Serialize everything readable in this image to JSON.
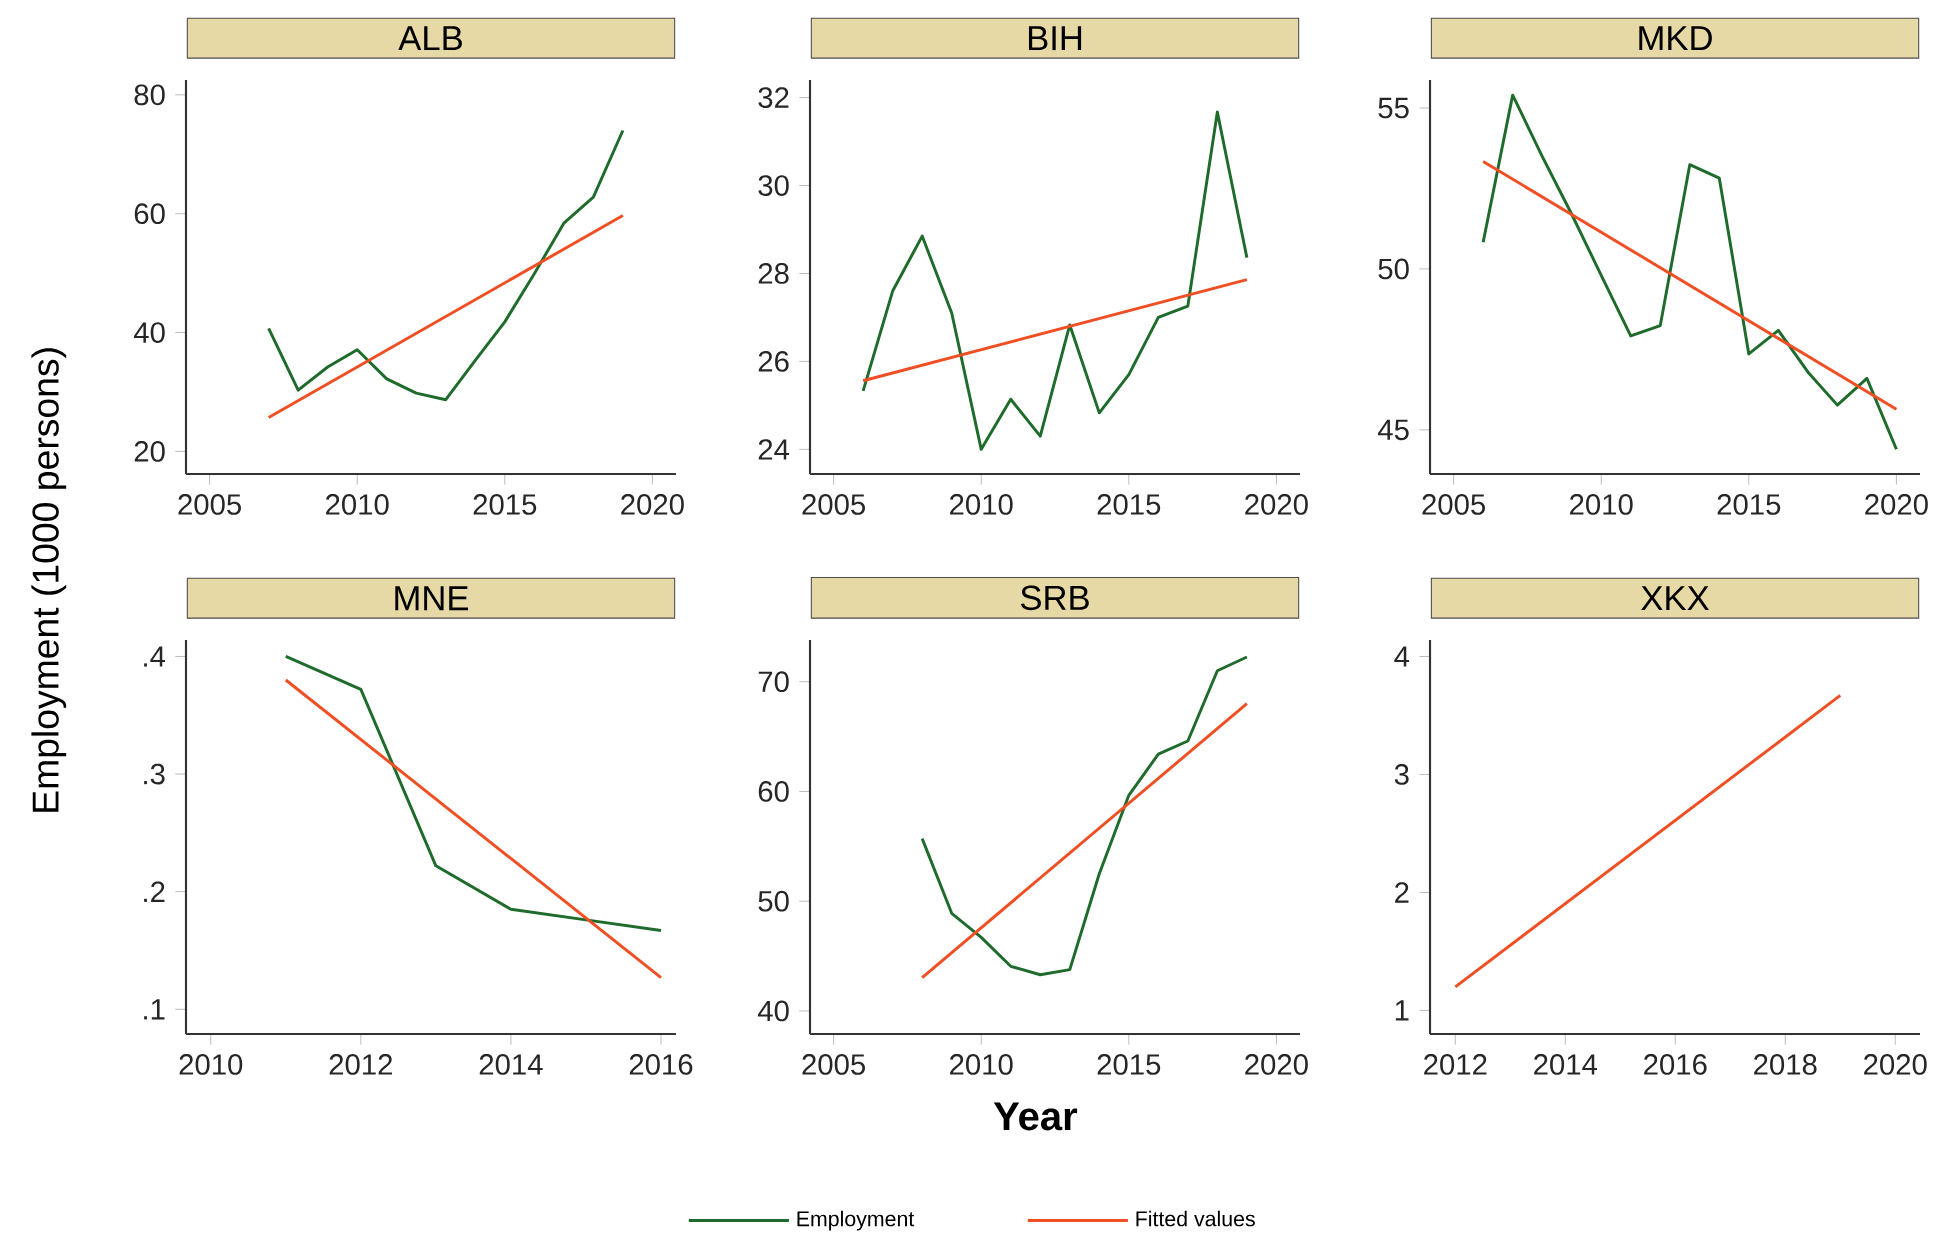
{
  "chart_data": [
    {
      "type": "line",
      "title": "ALB",
      "ylabel": "Employment (1000 persons)",
      "xlim": [
        2004.2,
        2020.8
      ],
      "ylim": [
        16.2,
        82.5
      ],
      "xticks": [
        2005,
        2010,
        2015,
        2020
      ],
      "yticks": [
        20,
        40,
        60,
        80
      ],
      "series": [
        {
          "color": "#1e6b2c",
          "x": [
            2007,
            2008,
            2009,
            2010,
            2011,
            2012,
            2013,
            2014,
            2015,
            2016,
            2017,
            2018,
            2019
          ],
          "values": [
            40.7,
            30.3,
            34.2,
            37.1,
            32.2,
            29.8,
            28.7,
            35.3,
            41.8,
            49.9,
            58.4,
            62.8,
            74.0
          ]
        },
        {
          "color": "#f04e23",
          "x": [
            2007,
            2019
          ],
          "values": [
            25.7,
            59.7
          ]
        }
      ]
    },
    {
      "type": "line",
      "title": "BIH",
      "xlim": [
        2004.2,
        2020.8
      ],
      "ylim": [
        23.44,
        32.4
      ],
      "xticks": [
        2005,
        2010,
        2015,
        2020
      ],
      "yticks": [
        24,
        26,
        28,
        30,
        32
      ],
      "series": [
        {
          "color": "#1e6b2c",
          "x": [
            2006,
            2007,
            2008,
            2009,
            2010,
            2011,
            2012,
            2013,
            2014,
            2015,
            2016,
            2017,
            2018,
            2019
          ],
          "values": [
            25.33,
            27.6,
            28.85,
            27.1,
            24.0,
            25.14,
            24.3,
            26.83,
            24.83,
            25.7,
            27.0,
            27.26,
            31.67,
            28.36
          ]
        },
        {
          "color": "#f04e23",
          "x": [
            2006,
            2019
          ],
          "values": [
            25.56,
            27.86
          ]
        }
      ]
    },
    {
      "type": "line",
      "title": "MKD",
      "xlim": [
        2004.2,
        2020.8
      ],
      "ylim": [
        43.63,
        55.87
      ],
      "xticks": [
        2005,
        2010,
        2015,
        2020
      ],
      "yticks": [
        45,
        50,
        55
      ],
      "series": [
        {
          "color": "#1e6b2c",
          "x": [
            2006,
            2007,
            2008,
            2009,
            2010,
            2011,
            2012,
            2013,
            2014,
            2015,
            2016,
            2017,
            2018,
            2019,
            2020
          ],
          "values": [
            50.83,
            55.4,
            53.5,
            51.7,
            49.8,
            47.92,
            48.24,
            53.24,
            52.82,
            47.36,
            48.09,
            46.8,
            45.77,
            46.6,
            44.4
          ]
        },
        {
          "color": "#f04e23",
          "x": [
            2006,
            2020
          ],
          "values": [
            53.34,
            45.64
          ]
        }
      ]
    },
    {
      "type": "line",
      "title": "MNE",
      "xlim": [
        2009.67,
        2016.2
      ],
      "ylim": [
        0.079,
        0.414
      ],
      "xticks": [
        2010,
        2012,
        2014,
        2016
      ],
      "yticks": [
        {
          "value": 0.1,
          "label": ".1"
        },
        {
          "value": 0.2,
          "label": ".2"
        },
        {
          "value": 0.3,
          "label": ".3"
        },
        {
          "value": 0.4,
          "label": ".4"
        }
      ],
      "series": [
        {
          "color": "#1e6b2c",
          "x": [
            2011,
            2012,
            2013,
            2014,
            2015,
            2016
          ],
          "values": [
            0.4,
            0.372,
            0.222,
            0.185,
            0.176,
            0.167
          ]
        },
        {
          "color": "#f04e23",
          "x": [
            2011,
            2016
          ],
          "values": [
            0.38,
            0.127
          ]
        }
      ]
    },
    {
      "type": "line",
      "title": "SRB",
      "xlabel": "Year",
      "legend": "bottom",
      "xlim": [
        2004.2,
        2020.8
      ],
      "ylim": [
        37.9,
        73.8
      ],
      "xticks": [
        2005,
        2010,
        2015,
        2020
      ],
      "yticks": [
        40,
        50,
        60,
        70
      ],
      "series": [
        {
          "name": "Employment",
          "color": "#1e6b2c",
          "x": [
            2008,
            2009,
            2010,
            2011,
            2012,
            2013,
            2014,
            2015,
            2016,
            2017,
            2018,
            2019
          ],
          "values": [
            55.7,
            48.9,
            46.7,
            44.07,
            43.3,
            43.77,
            52.5,
            59.65,
            63.4,
            64.6,
            71.0,
            72.25
          ]
        },
        {
          "name": "Fitted values",
          "color": "#f04e23",
          "x": [
            2008,
            2019
          ],
          "values": [
            43.04,
            68.0
          ]
        }
      ]
    },
    {
      "type": "line",
      "title": "XKX",
      "xlim": [
        2011.54,
        2020.45
      ],
      "ylim": [
        0.8,
        4.14
      ],
      "xticks": [
        2012,
        2014,
        2016,
        2018,
        2020
      ],
      "yticks": [
        1,
        2,
        3,
        4
      ],
      "series": [
        {
          "color": "#f04e23",
          "x": [
            2012,
            2019
          ],
          "values": [
            1.2,
            3.67
          ]
        }
      ]
    }
  ]
}
